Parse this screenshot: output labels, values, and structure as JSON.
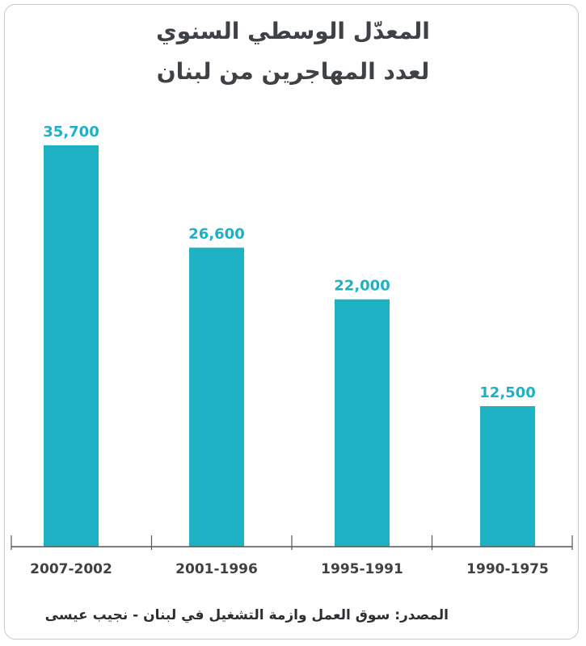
{
  "title": {
    "line1": "المعدّل الوسطي السنوي",
    "line2": "لعدد المهاجرين من لبنان"
  },
  "source": "المصدر: سوق العمل وازمة التشغيل في لبنان - نجيب عيسى",
  "colors": {
    "bar": "#1eb1c4",
    "label": "#1eb1c4",
    "axis": "#555555",
    "text": "#3e4146"
  },
  "chart_data": {
    "type": "bar",
    "categories": [
      "2007-2002",
      "2001-1996",
      "1995-1991",
      "1990-1975"
    ],
    "values": [
      35700,
      26600,
      22000,
      12500
    ],
    "value_labels": [
      "35,700",
      "26,600",
      "22,000",
      "12,500"
    ],
    "ylim": [
      0,
      39000
    ],
    "grid": false,
    "legend": "none"
  }
}
